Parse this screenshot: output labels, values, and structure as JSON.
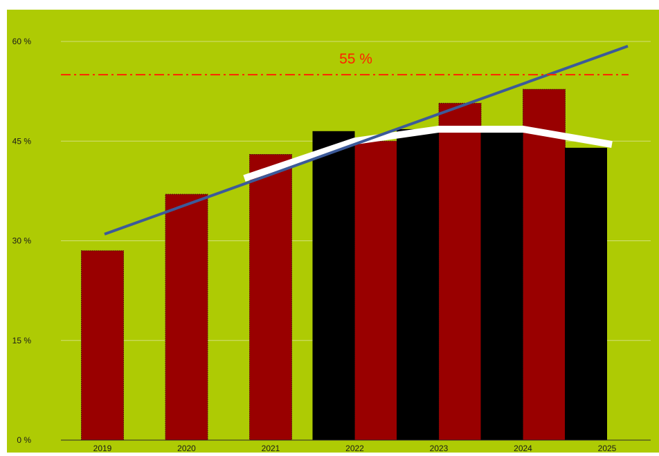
{
  "chart_data": {
    "type": "bar",
    "title": "",
    "xlabel": "",
    "ylabel": "",
    "ylim": [
      0,
      60
    ],
    "yticks": [
      0,
      15,
      30,
      45,
      60
    ],
    "ytick_labels": [
      "0 %",
      "15 %",
      "30 %",
      "45 %",
      "60 %"
    ],
    "categories": [
      "2019",
      "2020",
      "2021",
      "2022",
      "2023",
      "2024",
      "2025"
    ],
    "grid": true,
    "legend": "none",
    "series": [
      {
        "type": "bar",
        "color": "#990000",
        "values": [
          28.5,
          37.0,
          43.0,
          45.0,
          50.7,
          52.8,
          null
        ]
      },
      {
        "type": "bar",
        "color": "#000000",
        "values": [
          null,
          null,
          null,
          46.5,
          46.8,
          46.5,
          44.0
        ]
      },
      {
        "type": "line",
        "color": "#ffffff",
        "values": [
          null,
          null,
          39.4,
          45.0,
          46.8,
          46.8,
          44.5
        ]
      },
      {
        "type": "line",
        "color": "#3c5a9a",
        "values": [
          31.0,
          null,
          null,
          null,
          null,
          null,
          59.3
        ]
      }
    ],
    "reference_line": {
      "value": 55,
      "label": "55 %",
      "color": "#ff2200",
      "style": "dash-dot"
    }
  },
  "colors": {
    "background": "#aecb04",
    "gridline": "#d3df7a",
    "axis": "#2a2a2a"
  }
}
